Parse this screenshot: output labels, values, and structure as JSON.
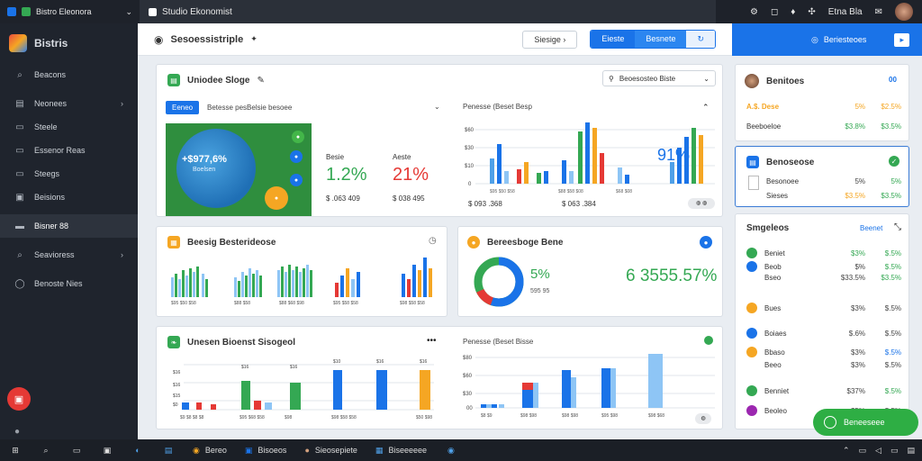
{
  "window": {
    "app_title": "Bistro Eleonora",
    "tab_title": "Studio Ekonomist",
    "right_label": "Etna Bla"
  },
  "sidebar": {
    "brand": "Bistris",
    "items": [
      {
        "label": "Beacons",
        "icon": "search-icon",
        "chevron": false
      },
      {
        "label": "Neonees",
        "icon": "briefcase-icon",
        "chevron": true
      },
      {
        "label": "Steele",
        "icon": "list-icon",
        "chevron": false
      },
      {
        "label": "Essenor Reas",
        "icon": "list-icon",
        "chevron": false
      },
      {
        "label": "Steegs",
        "icon": "list-icon",
        "chevron": false
      },
      {
        "label": "Beisions",
        "icon": "folder-icon",
        "chevron": false
      },
      {
        "label": "Bisner 88",
        "icon": "monitor-icon",
        "chevron": false
      },
      {
        "label": "Seavioress",
        "icon": "search-icon",
        "chevron": true
      },
      {
        "label": "Benoste Nies",
        "icon": "shield-icon",
        "chevron": false
      }
    ]
  },
  "header": {
    "title": "Sesoessistriple",
    "btn_outline": "Siesige",
    "seg_on": "Eieste",
    "seg_off": "Besnete",
    "band_label": "Beriesteoes"
  },
  "card_main": {
    "title": "Uniodee Sloge",
    "dropdown": "Beoesosteo Biste",
    "filter_btn": "Eeneo",
    "filter_text": "Betesse pesBelsie besoee",
    "globe_value": "+$977,6%",
    "globe_sub": "Boelsen",
    "kpi1_label": "Besie",
    "kpi1_value": "1.2%",
    "kpi1_sub": "$ .063 409",
    "kpi2_label": "Aeste",
    "kpi2_value": "21%",
    "kpi2_sub": "$ 038 495",
    "chart_title": "Penesse (Beset Besp",
    "chart_value": "91%",
    "chart_sub1": "$ 093 .368",
    "chart_sub2": "$ 063 .384"
  },
  "card_bars": {
    "title": "Beesig Besterideose"
  },
  "card_donut": {
    "title": "Bereesboge Bene",
    "donut_value": "5%",
    "donut_sub": "595 95",
    "big_value": "6 3555.57%"
  },
  "card_bottom": {
    "title": "Unesen Bioenst Sisogeol",
    "right_title": "Penesse (Beset Bisse"
  },
  "right_top": {
    "title": "Benitoes",
    "badge": "00",
    "rows": [
      {
        "name": "A.$. Dese",
        "v1": "5%",
        "v2": "$2.5%"
      },
      {
        "name": "Beeboeloe",
        "v1": "$3.8%",
        "v2": "$3.5%"
      }
    ]
  },
  "right_mid": {
    "title": "Benoseose",
    "rows": [
      {
        "name": "Besonoee",
        "v1": "5%",
        "v2": "5%"
      },
      {
        "name": "Sieses",
        "v1": "$3.5%",
        "v2": "$3.5%"
      }
    ]
  },
  "right_list": {
    "title": "Smgeleos",
    "action": "Beenet",
    "rows": [
      {
        "name": "Beniet",
        "v1": "$3%",
        "v2": "$.5%",
        "color": "#34a853"
      },
      {
        "name": "Beob",
        "v1": "$%",
        "v2": "$.5%",
        "color": "#1a73e8"
      },
      {
        "name": "Bseo",
        "v1": "$33.5%",
        "v2": "$3.5%",
        "color": "#1a73e8"
      },
      {
        "name": "Bues",
        "v1": "$3%",
        "v2": "$.5%",
        "color": "#f5a623"
      },
      {
        "name": "Boiaes",
        "v1": "$.6%",
        "v2": "$.5%",
        "color": "#1a73e8"
      },
      {
        "name": "Bbaso",
        "v1": "$3%",
        "v2": "$.5%",
        "color": "#f5a623"
      },
      {
        "name": "Beeo",
        "v1": "$3%",
        "v2": "$.5%",
        "color": "#ffffff"
      },
      {
        "name": "Benniet",
        "v1": "$37%",
        "v2": "$.5%",
        "color": "#34a853"
      },
      {
        "name": "Beoleo",
        "v1": "$5%",
        "v2": "$.5%",
        "color": "#9c27b0"
      }
    ]
  },
  "chat_button": "Beneeseee",
  "taskbar": {
    "apps": [
      "Bereo",
      "Bisoeos",
      "Sieosepiete",
      "Biseeeeee"
    ]
  }
}
